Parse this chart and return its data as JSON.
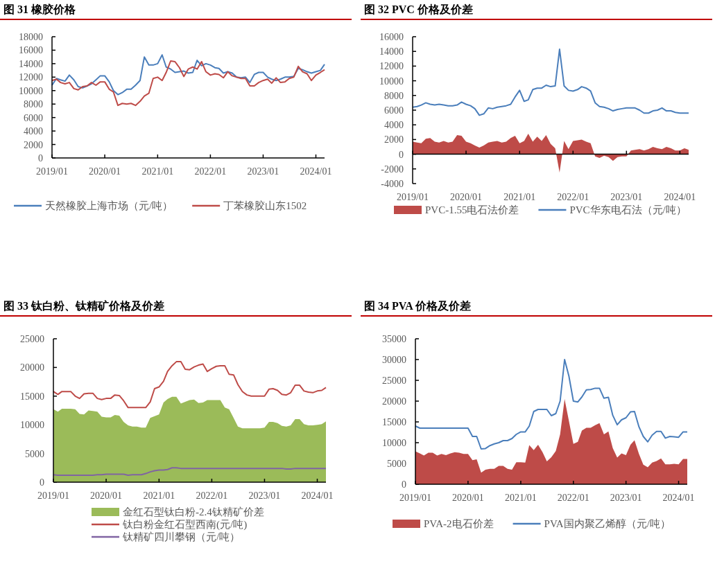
{
  "chart_data": [
    {
      "type": "line",
      "title": "图 31 橡胶价格",
      "legend": "bottom",
      "x": [
        "2019-01",
        "2019-02",
        "2019-03",
        "2019-04",
        "2019-05",
        "2019-06",
        "2019-07",
        "2019-08",
        "2019-09",
        "2019-10",
        "2019-11",
        "2019-12",
        "2020-01",
        "2020-02",
        "2020-03",
        "2020-04",
        "2020-05",
        "2020-06",
        "2020-07",
        "2020-08",
        "2020-09",
        "2020-10",
        "2020-11",
        "2020-12",
        "2021-01",
        "2021-02",
        "2021-03",
        "2021-04",
        "2021-05",
        "2021-06",
        "2021-07",
        "2021-08",
        "2021-09",
        "2021-10",
        "2021-11",
        "2021-12",
        "2022-01",
        "2022-02",
        "2022-03",
        "2022-04",
        "2022-05",
        "2022-06",
        "2022-07",
        "2022-08",
        "2022-09",
        "2022-10",
        "2022-11",
        "2022-12",
        "2023-01",
        "2023-02",
        "2023-03",
        "2023-04",
        "2023-05",
        "2023-06",
        "2023-07",
        "2023-08",
        "2023-09",
        "2023-10",
        "2023-11",
        "2023-12",
        "2024-01",
        "2024-02",
        "2024-03"
      ],
      "xlim": [
        "2019-01",
        "2024-03"
      ],
      "xticks": [
        {
          "value": "2019-01",
          "label": "2019/01"
        },
        {
          "value": "2020-01",
          "label": "2020/01"
        },
        {
          "value": "2021-01",
          "label": "2021/01"
        },
        {
          "value": "2022-01",
          "label": "2022/01"
        },
        {
          "value": "2023-01",
          "label": "2023/01"
        },
        {
          "value": "2024-01",
          "label": "2024/01"
        }
      ],
      "ylim": [
        0,
        18000
      ],
      "yticks": [
        0,
        2000,
        4000,
        6000,
        8000,
        10000,
        12000,
        14000,
        16000,
        18000
      ],
      "series": [
        {
          "name": "天然橡胶上海市场（元/吨）",
          "type": "line",
          "color": "#4a7ebb",
          "values": [
            10800,
            11800,
            11600,
            11400,
            12300,
            11600,
            10600,
            10400,
            10700,
            11000,
            11600,
            12200,
            12200,
            11300,
            10000,
            9400,
            9700,
            10200,
            10200,
            10800,
            11500,
            15000,
            13800,
            13800,
            14000,
            15300,
            13500,
            13200,
            12700,
            12800,
            12900,
            12600,
            12700,
            14500,
            13700,
            14000,
            13800,
            13400,
            13300,
            12600,
            12800,
            12600,
            12000,
            11900,
            12000,
            11200,
            12400,
            12700,
            12700,
            12000,
            11700,
            11500,
            11700,
            12000,
            12000,
            12100,
            13300,
            13100,
            12800,
            12600,
            12800,
            13000,
            13900
          ]
        },
        {
          "name": "丁苯橡胶山东1502",
          "type": "line",
          "color": "#be4b48",
          "values": [
            11500,
            11700,
            11200,
            11000,
            11200,
            10300,
            10100,
            10600,
            10700,
            11200,
            10800,
            11300,
            11300,
            10200,
            9800,
            7800,
            8100,
            8000,
            8100,
            7800,
            8400,
            9200,
            9600,
            11800,
            12000,
            11500,
            12700,
            14400,
            14300,
            13400,
            12100,
            13200,
            13500,
            13200,
            14300,
            12800,
            12300,
            12500,
            12400,
            11900,
            12800,
            12200,
            12000,
            11800,
            11800,
            10700,
            10700,
            11200,
            11500,
            11700,
            11100,
            11900,
            11200,
            11300,
            11800,
            12000,
            13600,
            12800,
            12500,
            11500,
            12300,
            12700,
            13100
          ]
        }
      ]
    },
    {
      "type": "line",
      "title": "图 32 PVC 价格及价差",
      "legend": "bottom",
      "x": [
        "2019-01",
        "2019-02",
        "2019-03",
        "2019-04",
        "2019-05",
        "2019-06",
        "2019-07",
        "2019-08",
        "2019-09",
        "2019-10",
        "2019-11",
        "2019-12",
        "2020-01",
        "2020-02",
        "2020-03",
        "2020-04",
        "2020-05",
        "2020-06",
        "2020-07",
        "2020-08",
        "2020-09",
        "2020-10",
        "2020-11",
        "2020-12",
        "2021-01",
        "2021-02",
        "2021-03",
        "2021-04",
        "2021-05",
        "2021-06",
        "2021-07",
        "2021-08",
        "2021-09",
        "2021-10",
        "2021-11",
        "2021-12",
        "2022-01",
        "2022-02",
        "2022-03",
        "2022-04",
        "2022-05",
        "2022-06",
        "2022-07",
        "2022-08",
        "2022-09",
        "2022-10",
        "2022-11",
        "2022-12",
        "2023-01",
        "2023-02",
        "2023-03",
        "2023-04",
        "2023-05",
        "2023-06",
        "2023-07",
        "2023-08",
        "2023-09",
        "2023-10",
        "2023-11",
        "2023-12",
        "2024-01",
        "2024-02",
        "2024-03"
      ],
      "xlim": [
        "2019-01",
        "2024-03"
      ],
      "xticks": [
        {
          "value": "2019-01",
          "label": "2019/01"
        },
        {
          "value": "2020-01",
          "label": "2020/01"
        },
        {
          "value": "2021-01",
          "label": "2021/01"
        },
        {
          "value": "2022-01",
          "label": "2022/01"
        },
        {
          "value": "2023-01",
          "label": "2023/01"
        },
        {
          "value": "2024-01",
          "label": "2024/01"
        }
      ],
      "ylim": [
        -4000,
        16000
      ],
      "yticks": [
        -4000,
        -2000,
        0,
        2000,
        4000,
        6000,
        8000,
        10000,
        12000,
        14000,
        16000
      ],
      "series": [
        {
          "name": "PVC-1.55电石法价差",
          "type": "area",
          "color": "#be4b48",
          "values": [
            1700,
            1600,
            1500,
            2100,
            2200,
            1700,
            1600,
            1800,
            1600,
            1700,
            2600,
            2500,
            1700,
            1500,
            1200,
            900,
            1200,
            1600,
            1700,
            1800,
            1600,
            1700,
            2200,
            2500,
            1500,
            1800,
            2800,
            1700,
            2400,
            1800,
            2600,
            1400,
            800,
            -2500,
            1800,
            700,
            1800,
            1900,
            2000,
            1700,
            1500,
            -300,
            -500,
            -200,
            -400,
            -900,
            -400,
            -300,
            -300,
            500,
            600,
            700,
            500,
            700,
            1000,
            800,
            700,
            1000,
            800,
            500,
            500,
            800,
            600
          ]
        },
        {
          "name": "PVC华东电石法（元/吨）",
          "type": "line",
          "color": "#4a7ebb",
          "values": [
            6400,
            6500,
            6700,
            7000,
            6800,
            6700,
            6800,
            6700,
            6600,
            6600,
            6700,
            7100,
            6800,
            6600,
            6200,
            5300,
            5500,
            6300,
            6200,
            6400,
            6500,
            6600,
            6800,
            7800,
            8700,
            7200,
            7400,
            8800,
            9000,
            9000,
            9400,
            9200,
            9300,
            14300,
            9300,
            8700,
            8600,
            8800,
            9200,
            9000,
            8600,
            7000,
            6500,
            6400,
            6200,
            5900,
            6100,
            6200,
            6300,
            6300,
            6300,
            6000,
            5600,
            5600,
            5900,
            6000,
            6300,
            5900,
            5900,
            5700,
            5600,
            5600,
            5600
          ]
        }
      ]
    },
    {
      "type": "line",
      "title": "图 33 钛白粉、钛精矿价格及价差",
      "legend": "bottom",
      "x": [
        "2019-01",
        "2019-02",
        "2019-03",
        "2019-04",
        "2019-05",
        "2019-06",
        "2019-07",
        "2019-08",
        "2019-09",
        "2019-10",
        "2019-11",
        "2019-12",
        "2020-01",
        "2020-02",
        "2020-03",
        "2020-04",
        "2020-05",
        "2020-06",
        "2020-07",
        "2020-08",
        "2020-09",
        "2020-10",
        "2020-11",
        "2020-12",
        "2021-01",
        "2021-02",
        "2021-03",
        "2021-04",
        "2021-05",
        "2021-06",
        "2021-07",
        "2021-08",
        "2021-09",
        "2021-10",
        "2021-11",
        "2021-12",
        "2022-01",
        "2022-02",
        "2022-03",
        "2022-04",
        "2022-05",
        "2022-06",
        "2022-07",
        "2022-08",
        "2022-09",
        "2022-10",
        "2022-11",
        "2022-12",
        "2023-01",
        "2023-02",
        "2023-03",
        "2023-04",
        "2023-05",
        "2023-06",
        "2023-07",
        "2023-08",
        "2023-09",
        "2023-10",
        "2023-11",
        "2023-12",
        "2024-01",
        "2024-02",
        "2024-03"
      ],
      "xlim": [
        "2019-01",
        "2024-03"
      ],
      "xticks": [
        {
          "value": "2019-01",
          "label": "2019/01"
        },
        {
          "value": "2020-01",
          "label": "2020/01"
        },
        {
          "value": "2021-01",
          "label": "2021/01"
        },
        {
          "value": "2022-01",
          "label": "2022/01"
        },
        {
          "value": "2023-01",
          "label": "2023/01"
        },
        {
          "value": "2024-01",
          "label": "2024/01"
        }
      ],
      "ylim": [
        0,
        25000
      ],
      "yticks": [
        0,
        5000,
        10000,
        15000,
        20000,
        25000
      ],
      "series": [
        {
          "name": "金红石型钛白粉-2.4钛精矿价差",
          "type": "area",
          "color": "#9bbb59",
          "values": [
            12700,
            12300,
            12800,
            12800,
            12800,
            12700,
            11900,
            11800,
            12500,
            12400,
            12300,
            11400,
            11300,
            11300,
            11700,
            11600,
            10500,
            9900,
            9700,
            9700,
            9500,
            9500,
            11200,
            11500,
            11800,
            13900,
            14500,
            14900,
            14900,
            13700,
            14000,
            14300,
            14400,
            13800,
            13900,
            14300,
            14300,
            14300,
            14300,
            13000,
            12700,
            11200,
            9700,
            9400,
            9400,
            9400,
            9400,
            9400,
            9500,
            10500,
            10500,
            10300,
            9800,
            9700,
            9900,
            11000,
            11000,
            10100,
            9900,
            9900,
            10000,
            10100,
            10600
          ]
        },
        {
          "name": "钛白粉金红石型西南(元/吨)",
          "type": "line",
          "color": "#be4b48",
          "values": [
            15800,
            15300,
            15800,
            15800,
            15800,
            15000,
            14600,
            15400,
            15500,
            15500,
            14600,
            14400,
            14600,
            14600,
            15200,
            15100,
            14200,
            13000,
            13000,
            13000,
            13000,
            13000,
            14000,
            16300,
            16600,
            17600,
            19300,
            20300,
            21000,
            21000,
            19700,
            19600,
            20100,
            20400,
            20600,
            19300,
            19800,
            20200,
            20300,
            20300,
            18800,
            18700,
            17000,
            15800,
            15200,
            15000,
            15000,
            15000,
            15000,
            16200,
            16300,
            16000,
            15300,
            15200,
            15600,
            16900,
            16900,
            15900,
            15700,
            15600,
            15900,
            16000,
            16500
          ]
        },
        {
          "name": "钛精矿四川攀钢（元/吨）",
          "type": "line",
          "color": "#8064a2",
          "values": [
            1300,
            1200,
            1200,
            1200,
            1200,
            1200,
            1200,
            1200,
            1200,
            1200,
            1300,
            1300,
            1400,
            1400,
            1400,
            1400,
            1400,
            1200,
            1300,
            1300,
            1300,
            1500,
            1800,
            2000,
            2100,
            2100,
            2200,
            2500,
            2500,
            2400,
            2400,
            2400,
            2400,
            2400,
            2400,
            2400,
            2400,
            2400,
            2400,
            2400,
            2400,
            2400,
            2400,
            2400,
            2400,
            2400,
            2400,
            2400,
            2400,
            2400,
            2400,
            2400,
            2400,
            2300,
            2300,
            2400,
            2400,
            2400,
            2400,
            2400,
            2400,
            2400,
            2400
          ]
        }
      ]
    },
    {
      "type": "line",
      "title": "图 34 PVA 价格及价差",
      "legend": "bottom",
      "x": [
        "2019-01",
        "2019-02",
        "2019-03",
        "2019-04",
        "2019-05",
        "2019-06",
        "2019-07",
        "2019-08",
        "2019-09",
        "2019-10",
        "2019-11",
        "2019-12",
        "2020-01",
        "2020-02",
        "2020-03",
        "2020-04",
        "2020-05",
        "2020-06",
        "2020-07",
        "2020-08",
        "2020-09",
        "2020-10",
        "2020-11",
        "2020-12",
        "2021-01",
        "2021-02",
        "2021-03",
        "2021-04",
        "2021-05",
        "2021-06",
        "2021-07",
        "2021-08",
        "2021-09",
        "2021-10",
        "2021-11",
        "2021-12",
        "2022-01",
        "2022-02",
        "2022-03",
        "2022-04",
        "2022-05",
        "2022-06",
        "2022-07",
        "2022-08",
        "2022-09",
        "2022-10",
        "2022-11",
        "2022-12",
        "2023-01",
        "2023-02",
        "2023-03",
        "2023-04",
        "2023-05",
        "2023-06",
        "2023-07",
        "2023-08",
        "2023-09",
        "2023-10",
        "2023-11",
        "2023-12",
        "2024-01",
        "2024-02",
        "2024-03"
      ],
      "xlim": [
        "2019-01",
        "2024-03"
      ],
      "xticks": [
        {
          "value": "2019-01",
          "label": "2019/01"
        },
        {
          "value": "2020-01",
          "label": "2020/01"
        },
        {
          "value": "2021-01",
          "label": "2021/01"
        },
        {
          "value": "2022-01",
          "label": "2022/01"
        },
        {
          "value": "2023-01",
          "label": "2023/01"
        },
        {
          "value": "2024-01",
          "label": "2024/01"
        }
      ],
      "ylim": [
        0,
        35000
      ],
      "yticks": [
        0,
        5000,
        10000,
        15000,
        20000,
        25000,
        30000,
        35000
      ],
      "series": [
        {
          "name": "PVA-2电石价差",
          "type": "area",
          "color": "#be4b48",
          "values": [
            7900,
            7400,
            6900,
            7600,
            7600,
            6900,
            7300,
            7000,
            7400,
            7700,
            7600,
            7300,
            7300,
            5800,
            6000,
            2800,
            3500,
            3700,
            3700,
            4400,
            4400,
            3700,
            3500,
            5300,
            5300,
            5200,
            9400,
            8200,
            9500,
            7700,
            5500,
            6500,
            8000,
            12000,
            20500,
            15200,
            9700,
            10200,
            12900,
            13600,
            13600,
            14200,
            14700,
            12000,
            12700,
            8700,
            6400,
            7400,
            7000,
            9500,
            10600,
            7300,
            4700,
            4100,
            5200,
            5600,
            6200,
            4800,
            4800,
            4900,
            4800,
            6100,
            6100
          ]
        },
        {
          "name": "PVA国内聚乙烯醇（元/吨）",
          "type": "line",
          "color": "#4a7ebb",
          "values": [
            14000,
            13500,
            13500,
            13500,
            13500,
            13500,
            13500,
            13500,
            13500,
            13500,
            13500,
            13500,
            13500,
            11500,
            11500,
            8500,
            8600,
            9300,
            9700,
            10000,
            10500,
            10500,
            11000,
            12000,
            12600,
            12600,
            14000,
            17500,
            18000,
            18000,
            18000,
            16500,
            17000,
            20000,
            30000,
            26000,
            20000,
            19800,
            21000,
            22700,
            22800,
            23100,
            23100,
            20700,
            20900,
            16600,
            14300,
            15500,
            16000,
            17400,
            17500,
            13800,
            11500,
            10200,
            11800,
            12700,
            12700,
            11100,
            11500,
            11400,
            11300,
            12600,
            12600
          ]
        }
      ]
    }
  ]
}
